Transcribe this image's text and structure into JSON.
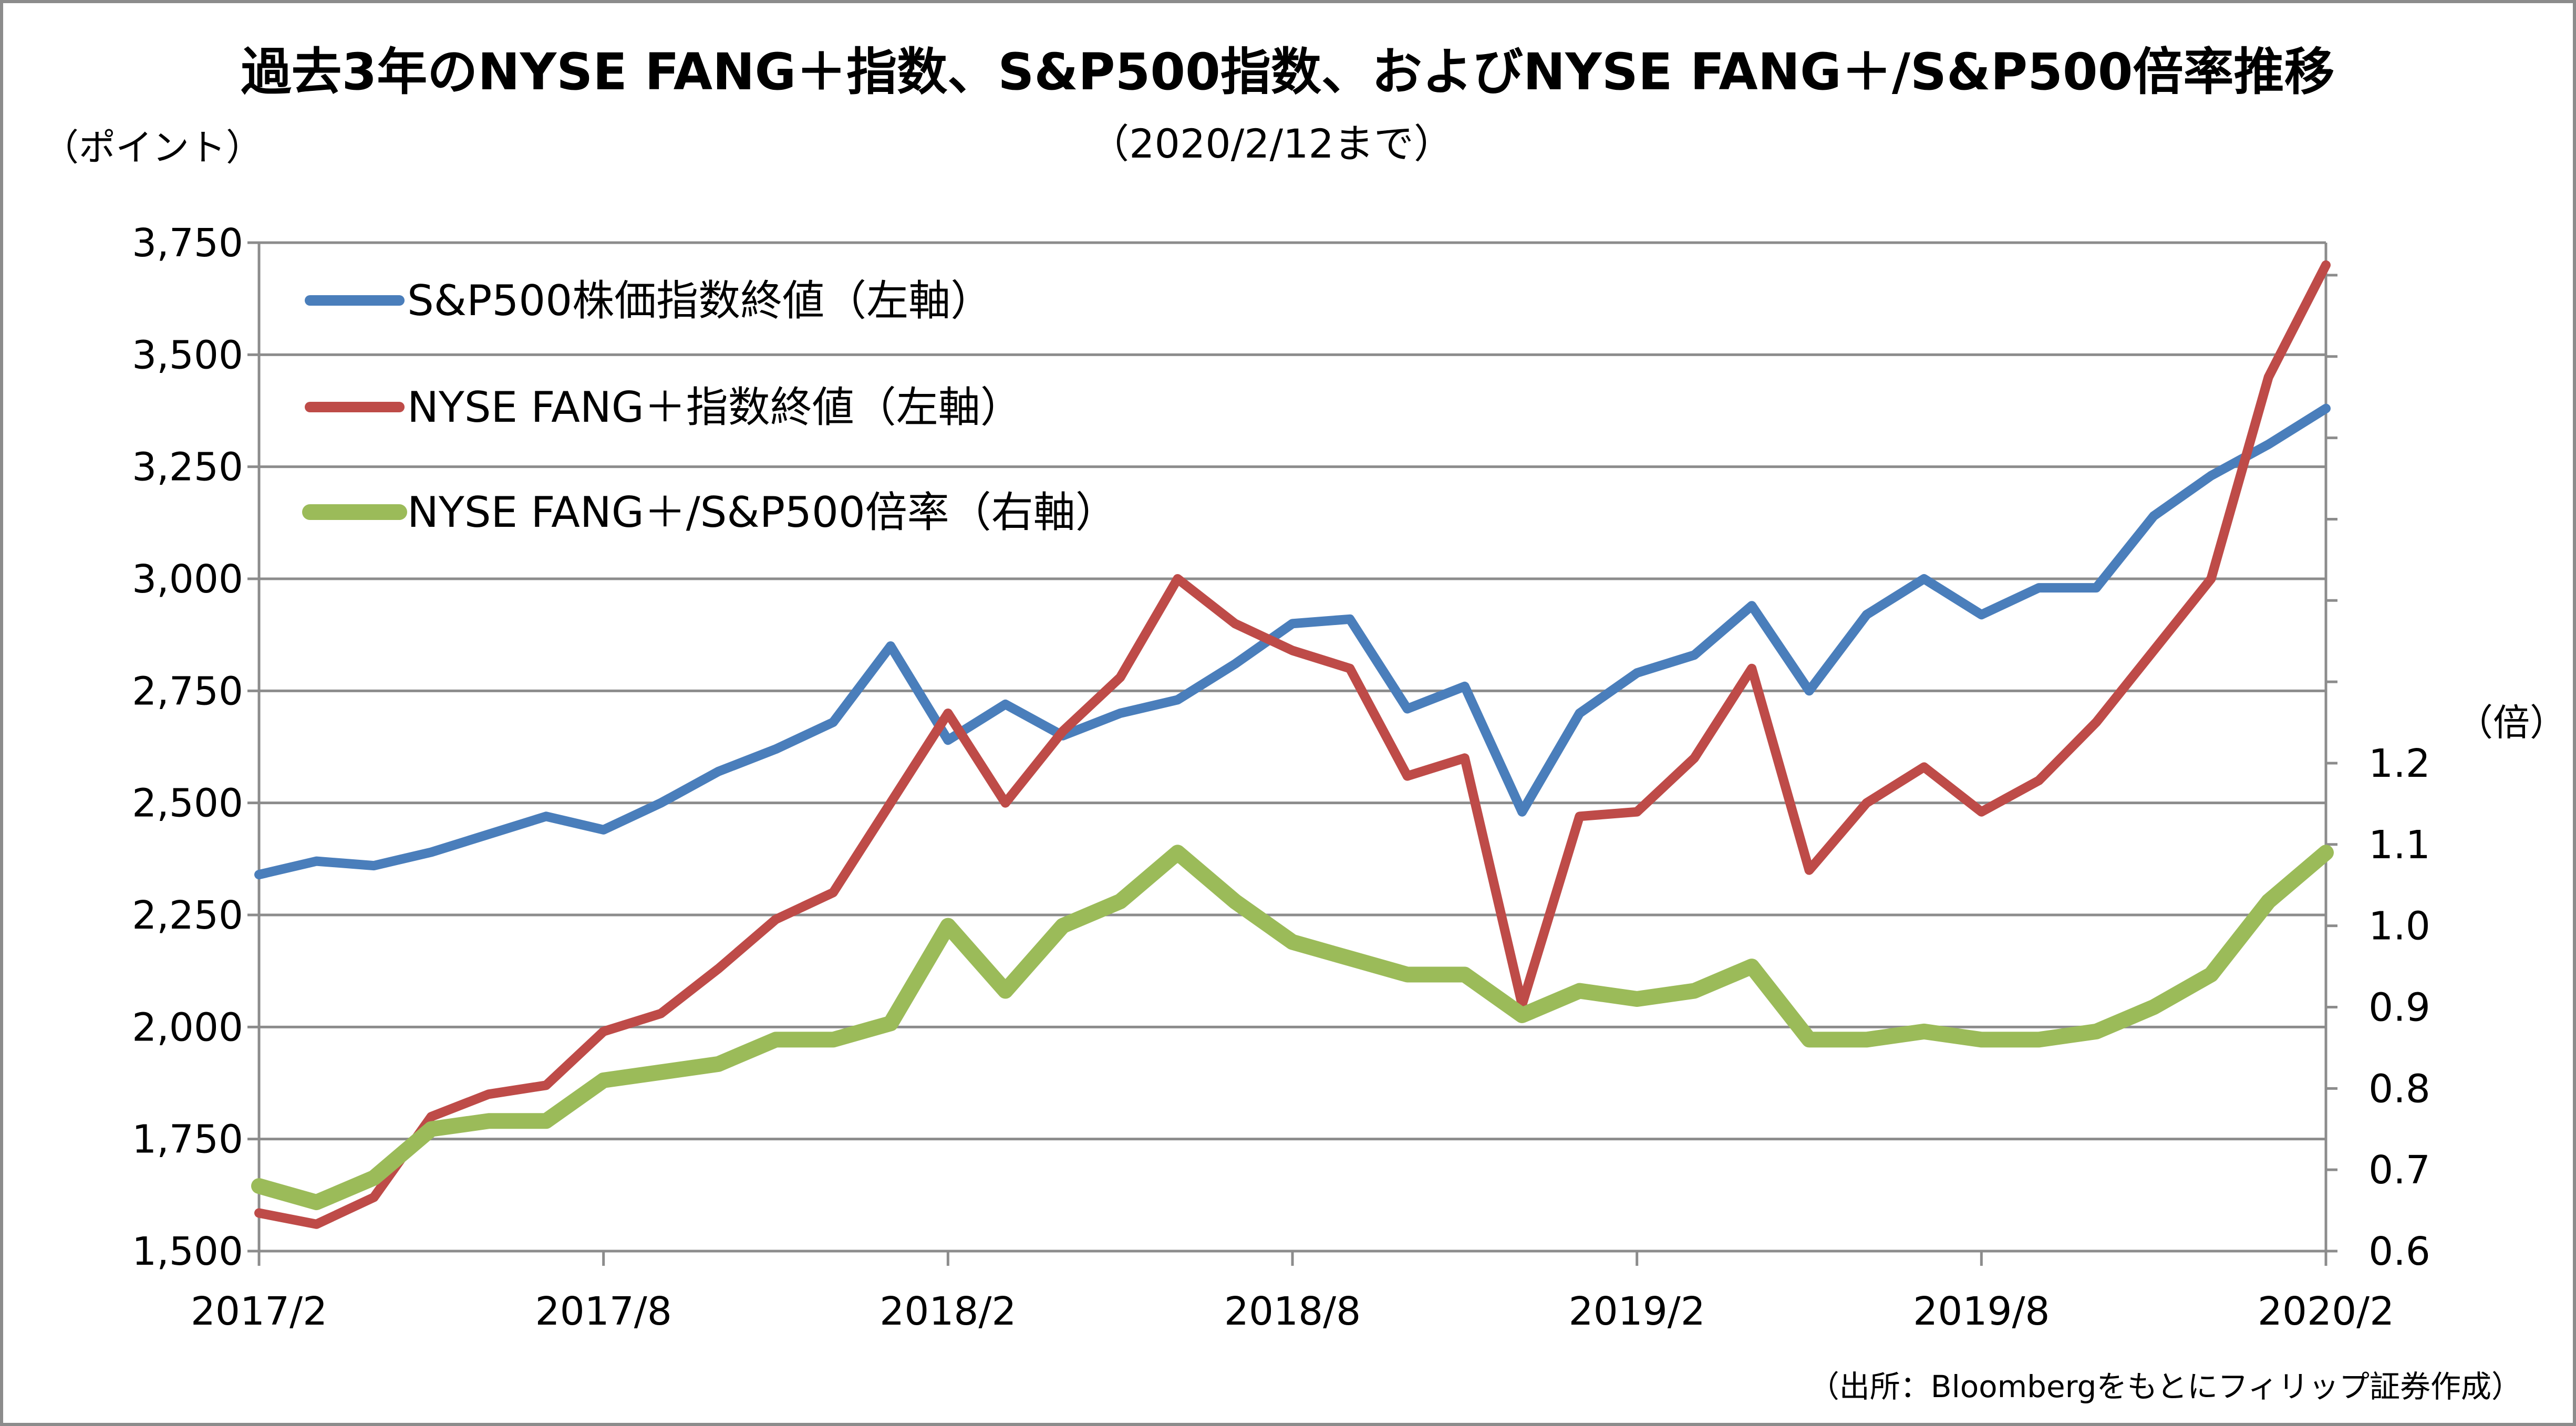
{
  "chart_data": {
    "type": "line",
    "title": "過去3年のNYSE FANG＋指数、S&P500指数、およびNYSE FANG＋/S&P500倍率推移",
    "subtitle": "（2020/2/12まで）",
    "source": "（出所：Bloombergをもとにフィリップ証券作成）",
    "y_left_unit": "（ポイント）",
    "y_right_unit": "（倍）",
    "x_tick_labels": [
      "2017/2",
      "2017/8",
      "2018/2",
      "2018/8",
      "2019/2",
      "2019/8",
      "2020/2"
    ],
    "y_left_tick_labels": [
      "1,500",
      "1,750",
      "2,000",
      "2,250",
      "2,500",
      "2,750",
      "3,000",
      "3,250",
      "3,500",
      "3,750"
    ],
    "y_right_tick_labels": [
      "0.6",
      "0.7",
      "0.8",
      "0.9",
      "1.0",
      "1.1",
      "1.2"
    ],
    "ylim_left": [
      1500,
      3750
    ],
    "ylim_right": [
      0.6,
      1.84
    ],
    "x_range": [
      "2017-02",
      "2020-02"
    ],
    "grid": true,
    "legend_position": "top-left",
    "x": [
      "2017/2",
      "2017/3",
      "2017/4",
      "2017/5",
      "2017/6",
      "2017/7",
      "2017/8",
      "2017/9",
      "2017/10",
      "2017/11",
      "2017/12",
      "2018/1",
      "2018/2",
      "2018/3",
      "2018/4",
      "2018/5",
      "2018/6",
      "2018/7",
      "2018/8",
      "2018/9",
      "2018/10",
      "2018/11",
      "2018/12",
      "2019/1",
      "2019/2",
      "2019/3",
      "2019/4",
      "2019/5",
      "2019/6",
      "2019/7",
      "2019/8",
      "2019/9",
      "2019/10",
      "2019/11",
      "2019/12",
      "2020/1",
      "2020/2"
    ],
    "series": [
      {
        "name": "S&P500株価指数終値（左軸）",
        "color": "#4a7ebb",
        "axis": "left",
        "values": [
          2340,
          2370,
          2360,
          2390,
          2430,
          2470,
          2440,
          2500,
          2570,
          2620,
          2680,
          2850,
          2640,
          2720,
          2650,
          2700,
          2730,
          2810,
          2900,
          2910,
          2710,
          2760,
          2480,
          2700,
          2790,
          2830,
          2940,
          2750,
          2920,
          3000,
          2920,
          2980,
          2980,
          3140,
          3230,
          3300,
          3380
        ]
      },
      {
        "name": "NYSE FANG＋指数終値（左軸）",
        "color": "#be4b48",
        "axis": "left",
        "values": [
          1585,
          1560,
          1620,
          1800,
          1850,
          1870,
          1990,
          2030,
          2130,
          2240,
          2300,
          2500,
          2700,
          2500,
          2660,
          2780,
          3000,
          2900,
          2840,
          2800,
          2560,
          2600,
          2050,
          2470,
          2480,
          2600,
          2800,
          2350,
          2500,
          2580,
          2480,
          2550,
          2680,
          2840,
          3000,
          3450,
          3700
        ]
      },
      {
        "name": "NYSE FANG＋/S&P500倍率（右軸）",
        "color": "#9bbb59",
        "axis": "right",
        "values": [
          0.68,
          0.66,
          0.69,
          0.75,
          0.76,
          0.76,
          0.81,
          0.82,
          0.83,
          0.86,
          0.86,
          0.88,
          1.0,
          0.92,
          1.0,
          1.03,
          1.09,
          1.03,
          0.98,
          0.96,
          0.94,
          0.94,
          0.89,
          0.92,
          0.91,
          0.92,
          0.95,
          0.86,
          0.86,
          0.87,
          0.86,
          0.86,
          0.87,
          0.9,
          0.94,
          1.03,
          1.09
        ]
      }
    ]
  }
}
